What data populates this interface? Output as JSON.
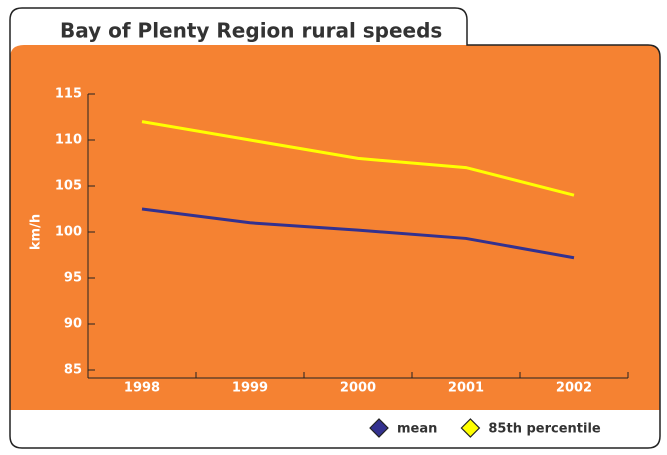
{
  "chart_data": {
    "type": "line",
    "title": "Bay of Plenty Region rural speeds",
    "y_label": "km/h",
    "categories": [
      "1998",
      "1999",
      "2000",
      "2001",
      "2002"
    ],
    "series": [
      {
        "name": "mean",
        "color": "#33318f",
        "values": [
          102.5,
          101,
          100.2,
          99.3,
          97.2
        ]
      },
      {
        "name": "85th percentile",
        "color": "#ffff00",
        "values": [
          112,
          110,
          108,
          107,
          104
        ]
      }
    ],
    "ylim": [
      85,
      115
    ],
    "yticks": [
      85,
      90,
      95,
      100,
      105,
      110,
      115
    ]
  }
}
